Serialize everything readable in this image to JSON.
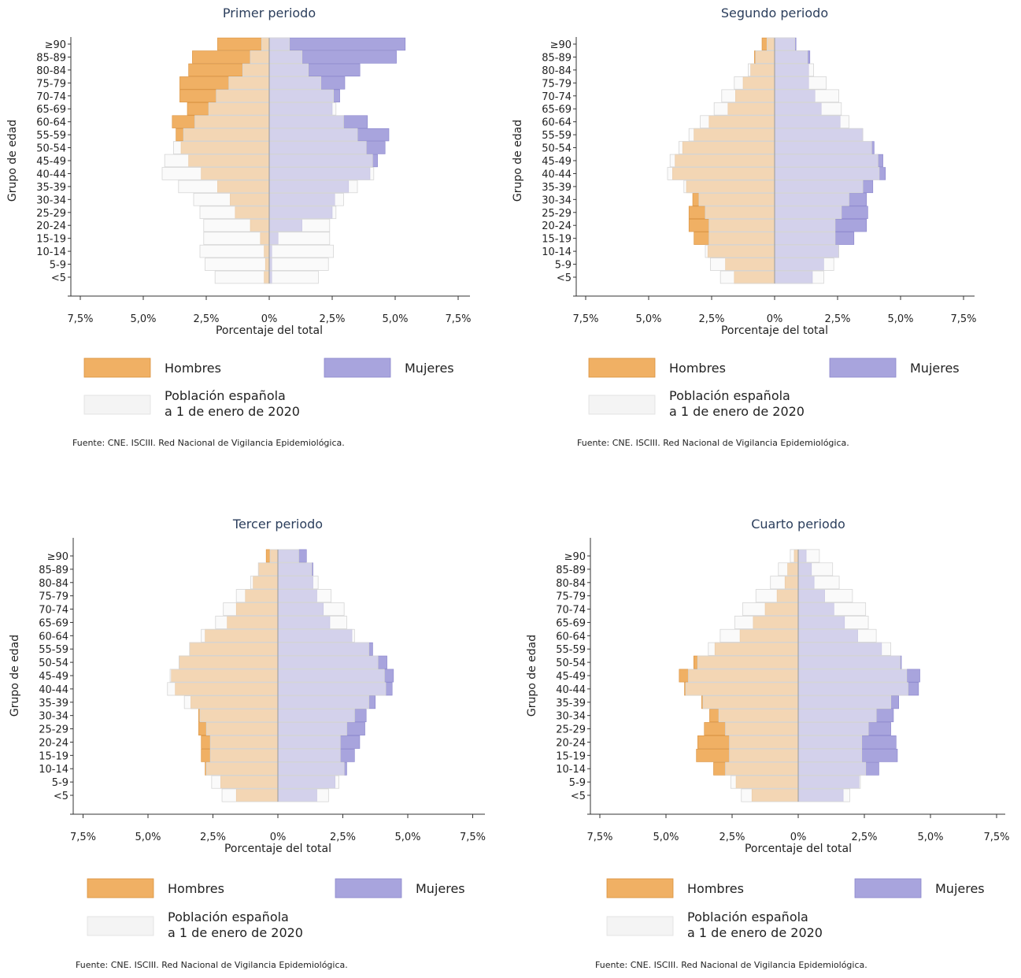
{
  "colors": {
    "men": "#f0b064",
    "men_stroke": "#d9913e",
    "women": "#a8a4dd",
    "women_stroke": "#8a85cc",
    "population_fill": "rgba(246,246,246,0.55)",
    "population_stroke": "#d6d6d6",
    "title": "#2b3e5c",
    "axis": "#333333"
  },
  "chart_data": [
    {
      "type": "bar",
      "title": "Primer periodo",
      "ylabel": "Grupo de edad",
      "xlabel": "Porcentaje del total",
      "xlim": [
        -7.5,
        7.5
      ],
      "xtick_labels": [
        "7,5%",
        "5,0%",
        "2,5%",
        "0%",
        "2,5%",
        "5,0%",
        "7,5%"
      ],
      "categories": [
        "≥90",
        "85-89",
        "80-84",
        "75-79",
        "70-74",
        "65-69",
        "60-64",
        "55-59",
        "50-54",
        "45-49",
        "40-44",
        "35-39",
        "30-34",
        "25-29",
        "20-24",
        "15-19",
        "10-14",
        "5-9",
        "<5"
      ],
      "series": [
        {
          "name": "Hombres",
          "values": [
            2.05,
            3.05,
            3.2,
            3.55,
            3.55,
            3.25,
            3.85,
            3.7,
            3.5,
            3.2,
            2.7,
            2.05,
            1.55,
            1.35,
            0.75,
            0.35,
            0.2,
            0.15,
            0.2
          ]
        },
        {
          "name": "Mujeres",
          "values": [
            5.4,
            5.05,
            3.6,
            3.0,
            2.8,
            2.5,
            3.9,
            4.75,
            4.6,
            4.3,
            4.0,
            3.15,
            2.6,
            2.5,
            1.3,
            0.35,
            0.1,
            0.1,
            0.1
          ]
        },
        {
          "name": "Población española\na 1 de enero de 2020",
          "men": [
            0.3,
            0.75,
            1.05,
            1.6,
            2.1,
            2.4,
            2.95,
            3.4,
            3.8,
            4.15,
            4.25,
            3.6,
            3.0,
            2.75,
            2.6,
            2.6,
            2.75,
            2.55,
            2.15
          ],
          "women": [
            0.8,
            1.3,
            1.55,
            2.05,
            2.55,
            2.65,
            2.95,
            3.5,
            3.85,
            4.1,
            4.15,
            3.5,
            2.95,
            2.65,
            2.4,
            2.4,
            2.55,
            2.35,
            1.95
          ]
        }
      ],
      "legend": [
        "Hombres",
        "Mujeres",
        "Población española\na 1 de enero de 2020"
      ],
      "source": "Fuente: CNE. ISCIII. Red Nacional de Vigilancia Epidemiológica."
    },
    {
      "type": "bar",
      "title": "Segundo periodo",
      "ylabel": "Grupo de edad",
      "xlabel": "Porcentaje del total",
      "xlim": [
        -7.5,
        7.5
      ],
      "xtick_labels": [
        "7,5%",
        "5,0%",
        "2,5%",
        "0%",
        "2,5%",
        "5,0%",
        "7,5%"
      ],
      "categories": [
        "≥90",
        "85-89",
        "80-84",
        "75-79",
        "70-74",
        "65-69",
        "60-64",
        "55-59",
        "50-54",
        "45-49",
        "40-44",
        "35-39",
        "30-34",
        "25-29",
        "20-24",
        "15-19",
        "10-14",
        "5-9",
        "<5"
      ],
      "series": [
        {
          "name": "Hombres",
          "values": [
            0.5,
            0.8,
            0.95,
            1.25,
            1.55,
            1.85,
            2.6,
            3.2,
            3.65,
            3.95,
            4.05,
            3.5,
            3.25,
            3.4,
            3.4,
            3.2,
            2.65,
            1.95,
            1.6
          ]
        },
        {
          "name": "Mujeres",
          "values": [
            0.85,
            1.4,
            1.35,
            1.35,
            1.6,
            1.85,
            2.6,
            3.5,
            3.95,
            4.3,
            4.4,
            3.9,
            3.65,
            3.7,
            3.65,
            3.15,
            2.55,
            1.95,
            1.5
          ]
        },
        {
          "name": "Población española\na 1 de enero de 2020",
          "men": [
            0.3,
            0.75,
            1.05,
            1.6,
            2.1,
            2.4,
            2.95,
            3.4,
            3.8,
            4.15,
            4.25,
            3.6,
            3.0,
            2.75,
            2.6,
            2.6,
            2.75,
            2.55,
            2.15
          ],
          "women": [
            0.8,
            1.3,
            1.55,
            2.05,
            2.55,
            2.65,
            2.95,
            3.5,
            3.85,
            4.1,
            4.15,
            3.5,
            2.95,
            2.65,
            2.4,
            2.4,
            2.55,
            2.35,
            1.95
          ]
        }
      ],
      "legend": [
        "Hombres",
        "Mujeres",
        "Población española\na 1 de enero de 2020"
      ],
      "source": "Fuente: CNE. ISCIII. Red Nacional de Vigilancia Epidemiológica."
    },
    {
      "type": "bar",
      "title": "Tercer periodo",
      "ylabel": "Grupo de edad",
      "xlabel": "Porcentaje del total",
      "xlim": [
        -7.5,
        7.5
      ],
      "xtick_labels": [
        "7,5%",
        "5,0%",
        "2,5%",
        "0%",
        "2,5%",
        "5,0%",
        "7,5%"
      ],
      "categories": [
        "≥90",
        "85-89",
        "80-84",
        "75-79",
        "70-74",
        "65-69",
        "60-64",
        "55-59",
        "50-54",
        "45-49",
        "40-44",
        "35-39",
        "30-34",
        "25-29",
        "20-24",
        "15-19",
        "10-14",
        "5-9",
        "<5"
      ],
      "series": [
        {
          "name": "Hombres",
          "values": [
            0.45,
            0.75,
            0.95,
            1.25,
            1.6,
            1.95,
            2.8,
            3.4,
            3.8,
            4.1,
            3.95,
            3.35,
            3.05,
            3.05,
            2.95,
            2.95,
            2.8,
            2.2,
            1.6
          ]
        },
        {
          "name": "Mujeres",
          "values": [
            1.1,
            1.35,
            1.35,
            1.5,
            1.75,
            2.0,
            2.85,
            3.65,
            4.2,
            4.45,
            4.4,
            3.75,
            3.4,
            3.35,
            3.15,
            2.95,
            2.65,
            2.2,
            1.5
          ]
        },
        {
          "name": "Población española\na 1 de enero de 2020",
          "men": [
            0.3,
            0.75,
            1.05,
            1.6,
            2.1,
            2.4,
            2.95,
            3.4,
            3.8,
            4.15,
            4.25,
            3.6,
            3.0,
            2.75,
            2.6,
            2.6,
            2.75,
            2.55,
            2.15
          ],
          "women": [
            0.8,
            1.3,
            1.55,
            2.05,
            2.55,
            2.65,
            2.95,
            3.5,
            3.85,
            4.1,
            4.15,
            3.5,
            2.95,
            2.65,
            2.4,
            2.4,
            2.55,
            2.35,
            1.95
          ]
        }
      ],
      "legend": [
        "Hombres",
        "Mujeres",
        "Población española\na 1 de enero de 2020"
      ],
      "source": "Fuente: CNE. ISCIII. Red Nacional de Vigilancia Epidemiológica."
    },
    {
      "type": "bar",
      "title": "Cuarto periodo",
      "ylabel": "Grupo de edad",
      "xlabel": "Porcentaje del total",
      "xlim": [
        -7.5,
        7.5
      ],
      "xtick_labels": [
        "7,5%",
        "5,0%",
        "2,5%",
        "0%",
        "2,5%",
        "5,0%",
        "7,5%"
      ],
      "categories": [
        "≥90",
        "85-89",
        "80-84",
        "75-79",
        "70-74",
        "65-69",
        "60-64",
        "55-59",
        "50-54",
        "45-49",
        "40-44",
        "35-39",
        "30-34",
        "25-29",
        "20-24",
        "15-19",
        "10-14",
        "5-9",
        "<5"
      ],
      "series": [
        {
          "name": "Hombres",
          "values": [
            0.15,
            0.4,
            0.5,
            0.8,
            1.25,
            1.7,
            2.2,
            3.15,
            3.95,
            4.5,
            4.3,
            3.65,
            3.35,
            3.55,
            3.8,
            3.85,
            3.2,
            2.35,
            1.75
          ]
        },
        {
          "name": "Mujeres",
          "values": [
            0.3,
            0.5,
            0.6,
            1.0,
            1.35,
            1.75,
            2.25,
            3.15,
            3.9,
            4.6,
            4.55,
            3.8,
            3.6,
            3.5,
            3.7,
            3.75,
            3.05,
            2.3,
            1.7
          ]
        },
        {
          "name": "Población española\na 1 de enero de 2020",
          "men": [
            0.3,
            0.75,
            1.05,
            1.6,
            2.1,
            2.4,
            2.95,
            3.4,
            3.8,
            4.15,
            4.25,
            3.6,
            3.0,
            2.75,
            2.6,
            2.6,
            2.75,
            2.55,
            2.15
          ],
          "women": [
            0.8,
            1.3,
            1.55,
            2.05,
            2.55,
            2.65,
            2.95,
            3.5,
            3.85,
            4.1,
            4.15,
            3.5,
            2.95,
            2.65,
            2.4,
            2.4,
            2.55,
            2.35,
            1.95
          ]
        }
      ],
      "legend": [
        "Hombres",
        "Mujeres",
        "Población española\na 1 de enero de 2020"
      ],
      "source": "Fuente: CNE. ISCIII. Red Nacional de Vigilancia Epidemiológica."
    }
  ]
}
